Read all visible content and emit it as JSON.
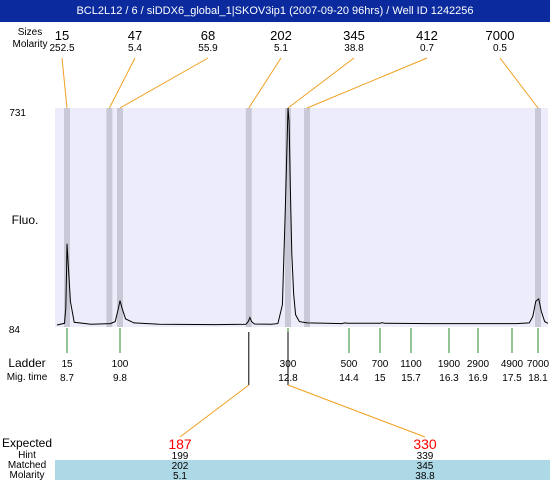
{
  "title": "BCL2L12 / 6 / siDDX6_global_1|SKOV3ip1 (2007-09-20 96hrs) / Well ID 1242256",
  "row_labels": {
    "sizes": "Sizes",
    "molarity": "Molarity",
    "fluo": "Fluo.",
    "ladder": "Ladder",
    "mig_time": "Mig. time",
    "expected": "Expected",
    "hint": "Hint",
    "matched": "Matched",
    "molarity_bottom": "Molarity"
  },
  "colors": {
    "title_bg": "#0a2a9e",
    "plot_bg": "#ececfb",
    "band": "#c8c8d6",
    "connector": "#f0a020",
    "ladder_tick": "#2a8a2a",
    "expected_text": "#ff0000",
    "matched_bg": "#add8e6"
  },
  "chart_data": {
    "type": "line",
    "ylim": [
      84,
      731
    ],
    "y_ticks": [
      "731",
      "84"
    ],
    "peaks": [
      {
        "size": "15",
        "molarity": "252.5",
        "time": 8.7
      },
      {
        "size": "47",
        "molarity": "5.4",
        "time": 9.58
      },
      {
        "size": "68",
        "molarity": "55.9",
        "time": 9.8
      },
      {
        "size": "202",
        "molarity": "5.1",
        "time": 12.1
      },
      {
        "size": "345",
        "molarity": "38.8",
        "time": 12.8
      },
      {
        "size": "412",
        "molarity": "0.7",
        "time": 13.3
      },
      {
        "size": "7000",
        "molarity": "0.5",
        "time": 18.1
      }
    ],
    "ladder": [
      {
        "bp": "15",
        "time": "8.7"
      },
      {
        "bp": "100",
        "time": "9.8"
      },
      {
        "bp": "300",
        "time": "12.8"
      },
      {
        "bp": "500",
        "time": "14.4"
      },
      {
        "bp": "700",
        "time": "15"
      },
      {
        "bp": "1100",
        "time": "15.7"
      },
      {
        "bp": "1900",
        "time": "16.3"
      },
      {
        "bp": "2900",
        "time": "16.9"
      },
      {
        "bp": "4900",
        "time": "17.5"
      },
      {
        "bp": "7000",
        "time": "18.1"
      }
    ],
    "signal": [
      [
        8.1,
        90
      ],
      [
        8.55,
        95
      ],
      [
        8.63,
        140
      ],
      [
        8.67,
        240
      ],
      [
        8.7,
        330
      ],
      [
        8.73,
        260
      ],
      [
        8.77,
        160
      ],
      [
        8.85,
        98
      ],
      [
        9.2,
        92
      ],
      [
        9.6,
        94
      ],
      [
        9.7,
        100
      ],
      [
        9.76,
        135
      ],
      [
        9.8,
        162
      ],
      [
        9.84,
        138
      ],
      [
        9.9,
        108
      ],
      [
        10.05,
        96
      ],
      [
        10.5,
        92
      ],
      [
        11.5,
        91
      ],
      [
        12.05,
        92
      ],
      [
        12.09,
        100
      ],
      [
        12.12,
        112
      ],
      [
        12.15,
        100
      ],
      [
        12.2,
        93
      ],
      [
        12.5,
        92
      ],
      [
        12.62,
        94
      ],
      [
        12.7,
        150
      ],
      [
        12.75,
        420
      ],
      [
        12.8,
        731
      ],
      [
        12.83,
        690
      ],
      [
        12.86,
        500
      ],
      [
        12.9,
        300
      ],
      [
        12.95,
        180
      ],
      [
        13.0,
        120
      ],
      [
        13.1,
        100
      ],
      [
        13.3,
        96
      ],
      [
        13.8,
        95
      ],
      [
        14.2,
        94
      ],
      [
        14.3,
        96
      ],
      [
        14.35,
        95
      ],
      [
        15.0,
        95
      ],
      [
        15.05,
        97
      ],
      [
        15.1,
        95
      ],
      [
        16.0,
        94
      ],
      [
        17.0,
        94
      ],
      [
        17.6,
        94
      ],
      [
        17.9,
        96
      ],
      [
        17.98,
        115
      ],
      [
        18.05,
        160
      ],
      [
        18.12,
        167
      ],
      [
        18.2,
        130
      ],
      [
        18.3,
        100
      ],
      [
        18.4,
        95
      ]
    ],
    "expected": [
      {
        "expected": "187",
        "hint": "199",
        "matched": "202",
        "molarity": "5.1",
        "time": 12.1
      },
      {
        "expected": "330",
        "hint": "339",
        "matched": "345",
        "molarity": "38.8",
        "time": 12.8
      }
    ]
  }
}
